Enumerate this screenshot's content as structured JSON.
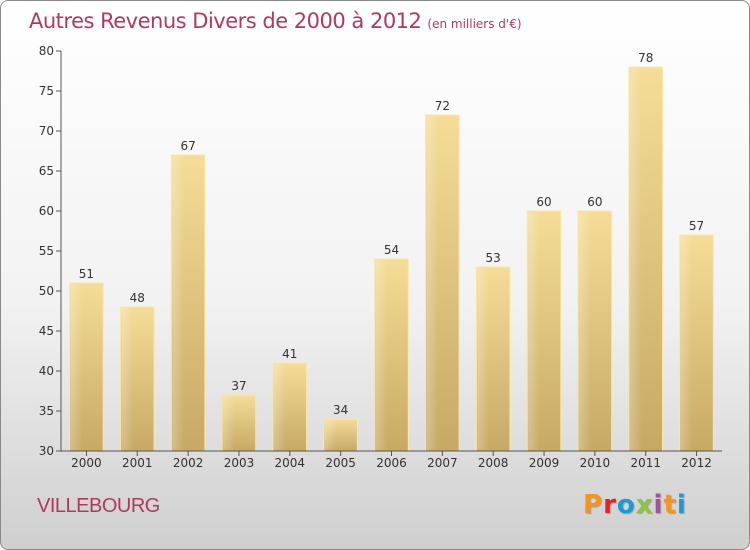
{
  "header": {
    "title": "Autres Revenus Divers de 2000 à 2012",
    "unit": "(en milliers d'€)"
  },
  "footer": {
    "commune": "VILLEBOURG",
    "logo_text": "Proxiti",
    "logo_colors": [
      "#f7941d",
      "#e8202a",
      "#1c9ad6",
      "#8cc63f",
      "#a84f9c",
      "#f7941d",
      "#1c9ad6"
    ]
  },
  "chart_data": {
    "type": "bar",
    "title": "Autres Revenus Divers de 2000 à 2012",
    "subtitle": "(en milliers d'€)",
    "xlabel": "",
    "ylabel": "",
    "categories": [
      "2000",
      "2001",
      "2002",
      "2003",
      "2004",
      "2005",
      "2006",
      "2007",
      "2008",
      "2009",
      "2010",
      "2011",
      "2012"
    ],
    "values": [
      51,
      48,
      67,
      37,
      41,
      34,
      54,
      72,
      53,
      60,
      60,
      78,
      57
    ],
    "ylim": [
      30,
      80
    ],
    "yticks": [
      30,
      35,
      40,
      45,
      50,
      55,
      60,
      65,
      70,
      75,
      80
    ],
    "grid": false,
    "bar_color": "#e8cd86",
    "data_labels": true
  }
}
